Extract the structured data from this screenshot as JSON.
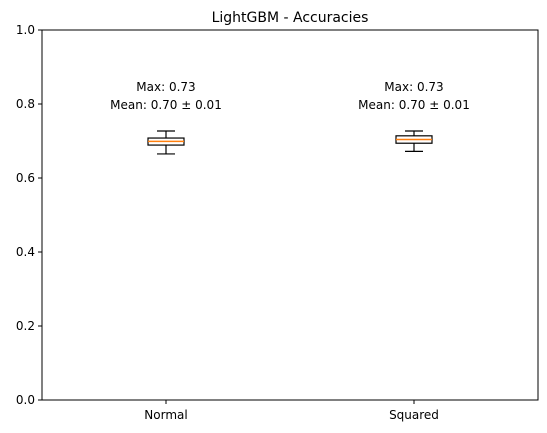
{
  "chart_data": {
    "type": "box",
    "title": "LightGBM - Accuracies",
    "xlabel": "",
    "ylabel": "",
    "ylim": [
      0,
      1.0
    ],
    "y_ticks": [
      "0.0",
      "0.2",
      "0.4",
      "0.6",
      "0.8",
      "1.0"
    ],
    "categories": [
      "Normal",
      "Squared"
    ],
    "boxes": [
      {
        "category": "Normal",
        "whisker_low": 0.665,
        "q1": 0.689,
        "median": 0.699,
        "q3": 0.708,
        "whisker_high": 0.727,
        "annotation_max": "Max: 0.73",
        "annotation_mean": "Mean: 0.70 ± 0.01"
      },
      {
        "category": "Squared",
        "whisker_low": 0.672,
        "q1": 0.694,
        "median": 0.704,
        "q3": 0.714,
        "whisker_high": 0.727,
        "annotation_max": "Max: 0.73",
        "annotation_mean": "Mean: 0.70 ± 0.01"
      }
    ],
    "grid": false,
    "legend": "none",
    "colors": {
      "box": "#000000",
      "median": "#ff7f0e",
      "box_fill": "#ffffff"
    }
  }
}
